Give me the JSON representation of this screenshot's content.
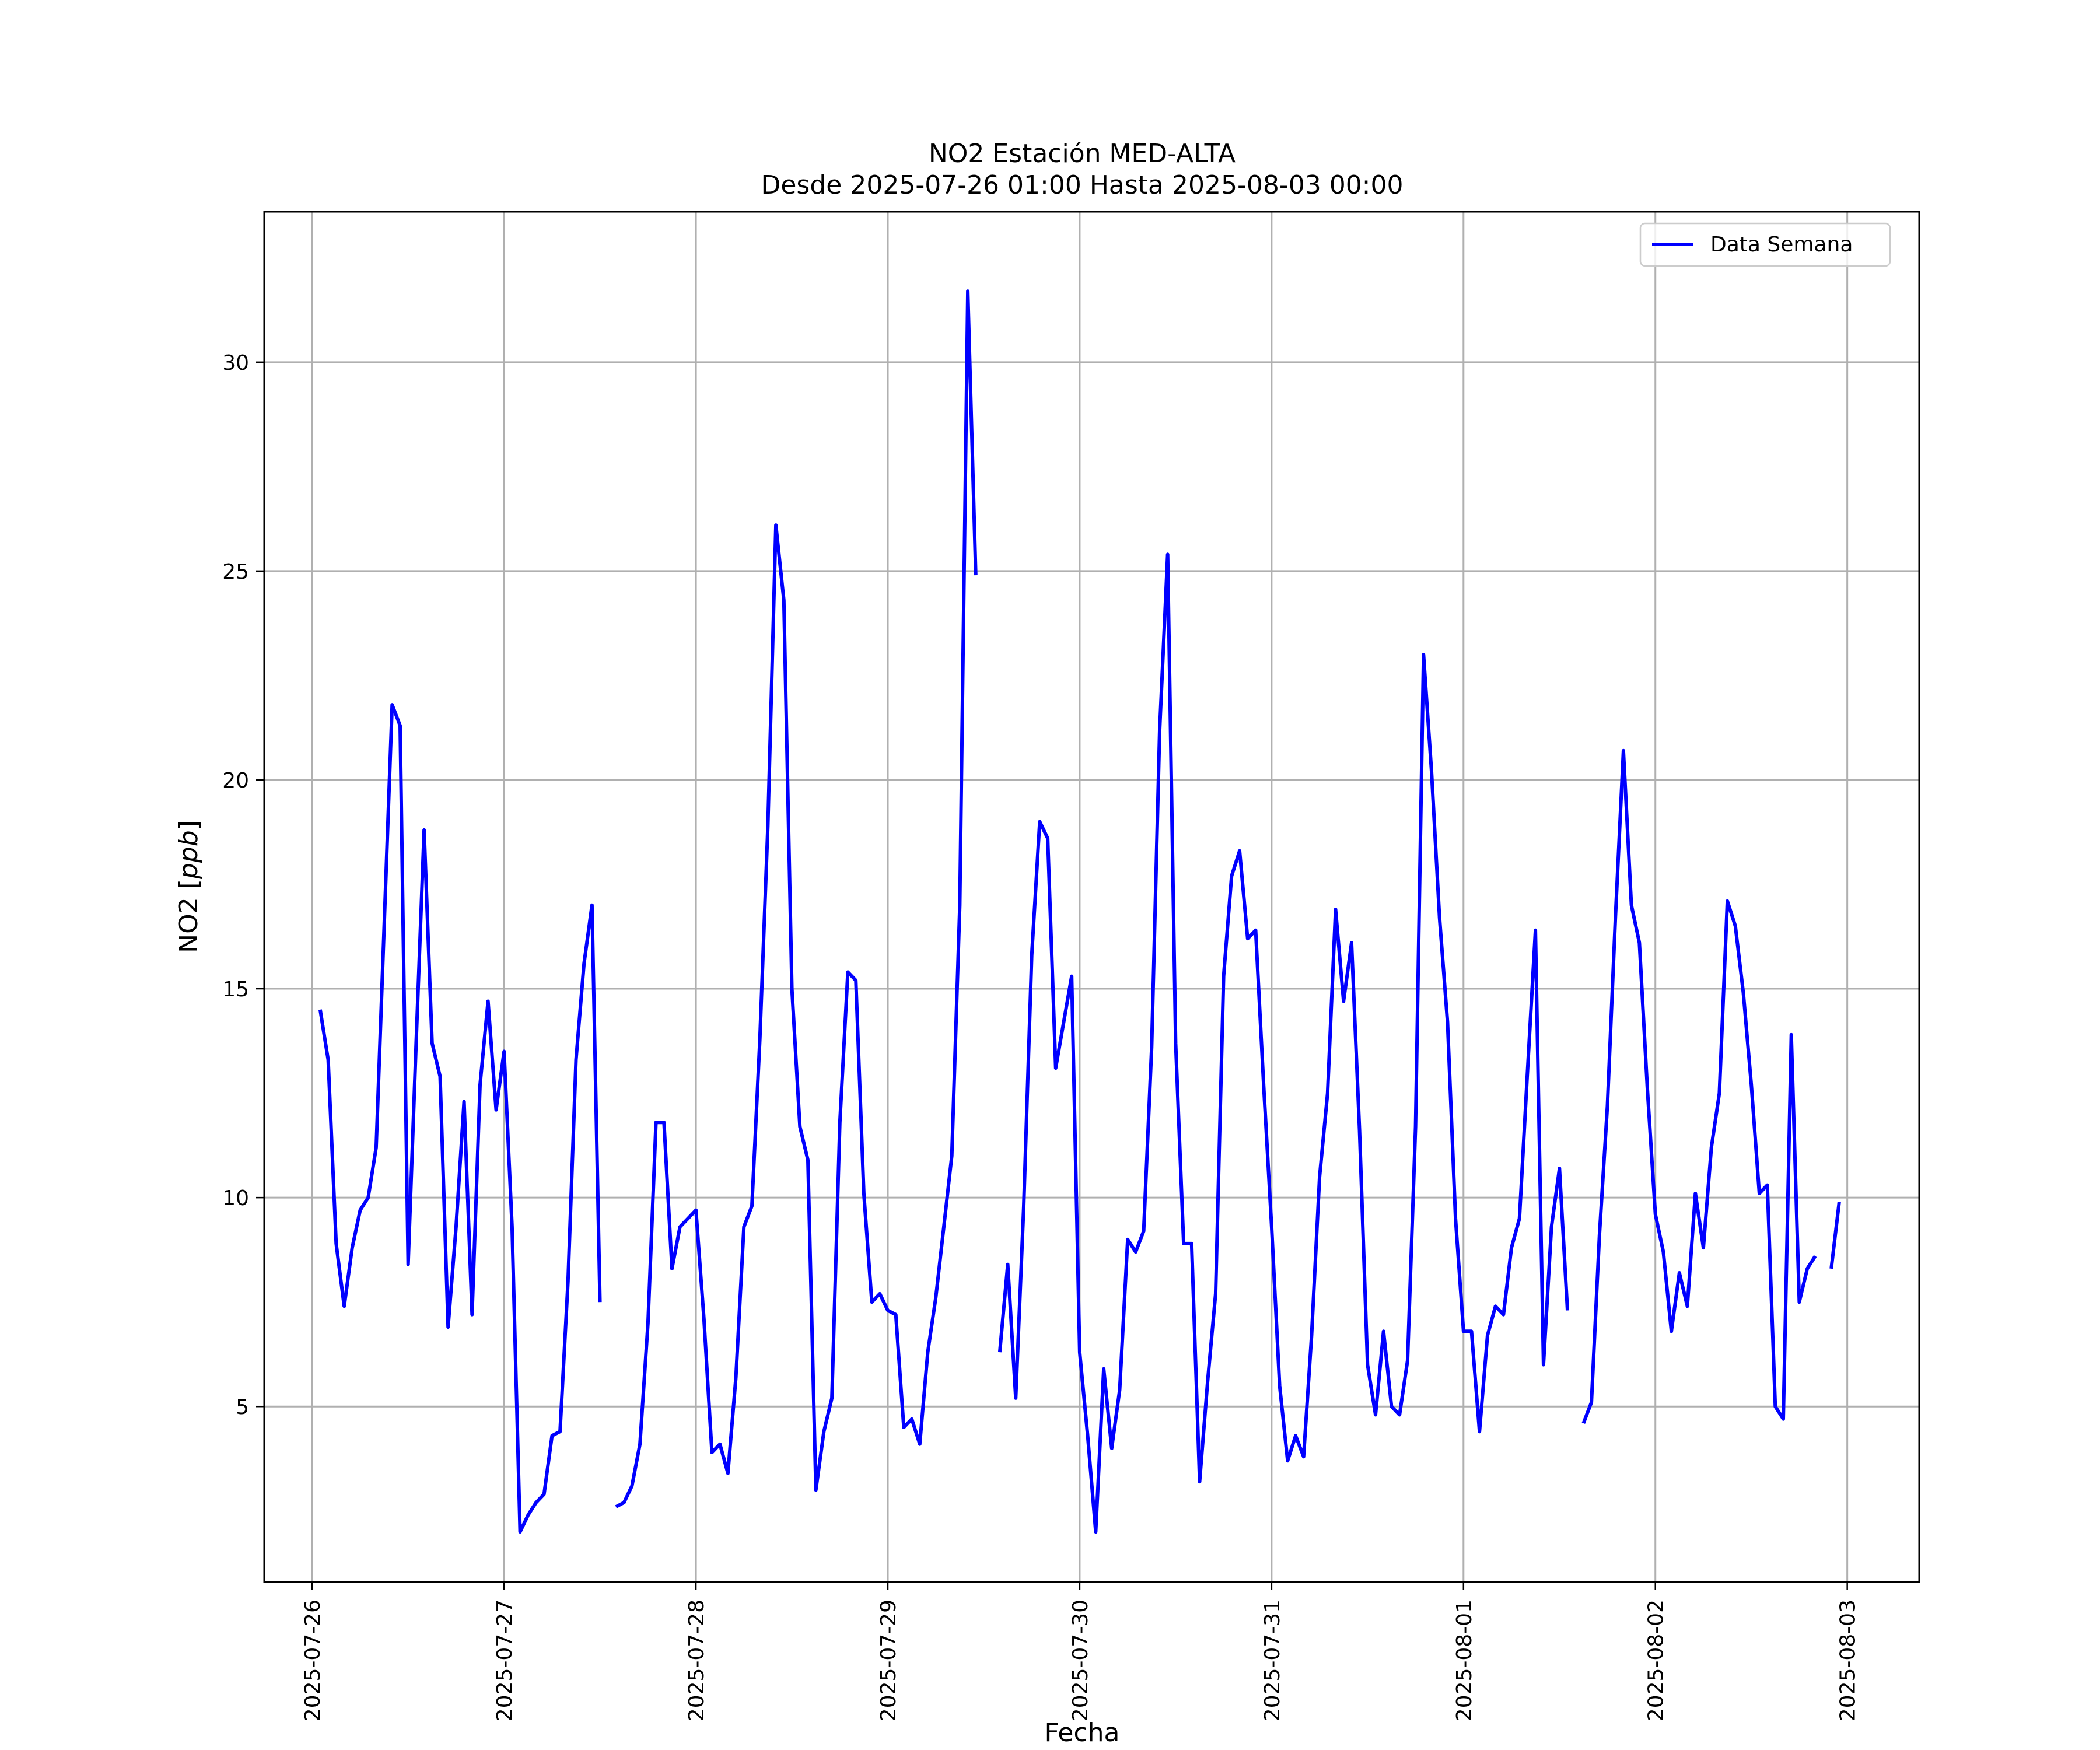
{
  "chart_data": {
    "type": "line",
    "title": "NO2 Estación MED-ALTA",
    "subtitle": "Desde 2025-07-26 01:00 Hasta 2025-08-03 00:00",
    "xlabel": "Fecha",
    "ylabel": "NO2 [ppb]",
    "ylabel_main": "NO2 ",
    "ylabel_unit": "ppb",
    "xlim": [
      "2025-07-25 18:00",
      "2025-08-03 09:00"
    ],
    "ylim": [
      0.8,
      33.6
    ],
    "grid": true,
    "legend": "top-right",
    "x_ticks": [
      "2025-07-26",
      "2025-07-27",
      "2025-07-28",
      "2025-07-29",
      "2025-07-30",
      "2025-07-31",
      "2025-08-01",
      "2025-08-02",
      "2025-08-03"
    ],
    "y_ticks": [
      5,
      10,
      15,
      20,
      25,
      30
    ],
    "series": [
      {
        "name": "Data Semana",
        "color": "#0000ff",
        "points": [
          [
            "2025-07-26 01:00",
            14.5
          ],
          [
            "2025-07-26 02:00",
            13.3
          ],
          [
            "2025-07-26 03:00",
            8.9
          ],
          [
            "2025-07-26 04:00",
            7.4
          ],
          [
            "2025-07-26 05:00",
            8.8
          ],
          [
            "2025-07-26 06:00",
            9.7
          ],
          [
            "2025-07-26 07:00",
            10.0
          ],
          [
            "2025-07-26 08:00",
            11.2
          ],
          [
            "2025-07-26 09:00",
            16.5
          ],
          [
            "2025-07-26 10:00",
            21.8
          ],
          [
            "2025-07-26 11:00",
            21.3
          ],
          [
            "2025-07-26 12:00",
            8.4
          ],
          [
            "2025-07-26 13:00",
            13.7
          ],
          [
            "2025-07-26 14:00",
            18.8
          ],
          [
            "2025-07-26 15:00",
            13.7
          ],
          [
            "2025-07-26 16:00",
            12.9
          ],
          [
            "2025-07-26 17:00",
            6.9
          ],
          [
            "2025-07-26 18:00",
            9.3
          ],
          [
            "2025-07-26 19:00",
            12.3
          ],
          [
            "2025-07-26 20:00",
            7.2
          ],
          [
            "2025-07-26 21:00",
            12.7
          ],
          [
            "2025-07-26 22:00",
            14.7
          ],
          [
            "2025-07-26 23:00",
            12.1
          ],
          [
            "2025-07-27 00:00",
            13.5
          ],
          [
            "2025-07-27 01:00",
            9.3
          ],
          [
            "2025-07-27 02:00",
            2.0
          ],
          [
            "2025-07-27 03:00",
            2.4
          ],
          [
            "2025-07-27 04:00",
            2.7
          ],
          [
            "2025-07-27 05:00",
            2.9
          ],
          [
            "2025-07-27 06:00",
            4.3
          ],
          [
            "2025-07-27 07:00",
            4.4
          ],
          [
            "2025-07-27 08:00",
            8.0
          ],
          [
            "2025-07-27 09:00",
            13.3
          ],
          [
            "2025-07-27 10:00",
            15.6
          ],
          [
            "2025-07-27 11:00",
            17.0
          ],
          [
            "2025-07-27 12:00",
            7.5
          ],
          [
            "2025-07-27 13:00",
            null
          ],
          [
            "2025-07-27 14:00",
            2.6
          ],
          [
            "2025-07-27 15:00",
            2.7
          ],
          [
            "2025-07-27 16:00",
            3.1
          ],
          [
            "2025-07-27 17:00",
            4.1
          ],
          [
            "2025-07-27 18:00",
            7.0
          ],
          [
            "2025-07-27 19:00",
            11.8
          ],
          [
            "2025-07-27 20:00",
            11.8
          ],
          [
            "2025-07-27 21:00",
            8.3
          ],
          [
            "2025-07-27 22:00",
            9.3
          ],
          [
            "2025-07-27 23:00",
            9.5
          ],
          [
            "2025-07-28 00:00",
            9.7
          ],
          [
            "2025-07-28 01:00",
            7.1
          ],
          [
            "2025-07-28 02:00",
            3.9
          ],
          [
            "2025-07-28 03:00",
            4.1
          ],
          [
            "2025-07-28 04:00",
            3.4
          ],
          [
            "2025-07-28 05:00",
            5.7
          ],
          [
            "2025-07-28 06:00",
            9.3
          ],
          [
            "2025-07-28 07:00",
            9.8
          ],
          [
            "2025-07-28 08:00",
            13.8
          ],
          [
            "2025-07-28 09:00",
            18.9
          ],
          [
            "2025-07-28 10:00",
            26.1
          ],
          [
            "2025-07-28 11:00",
            24.3
          ],
          [
            "2025-07-28 12:00",
            15.0
          ],
          [
            "2025-07-28 13:00",
            11.7
          ],
          [
            "2025-07-28 14:00",
            10.9
          ],
          [
            "2025-07-28 15:00",
            3.0
          ],
          [
            "2025-07-28 16:00",
            4.4
          ],
          [
            "2025-07-28 17:00",
            5.2
          ],
          [
            "2025-07-28 18:00",
            11.8
          ],
          [
            "2025-07-28 19:00",
            15.4
          ],
          [
            "2025-07-28 20:00",
            15.2
          ],
          [
            "2025-07-28 21:00",
            10.1
          ],
          [
            "2025-07-28 22:00",
            7.5
          ],
          [
            "2025-07-28 23:00",
            7.7
          ],
          [
            "2025-07-29 00:00",
            7.3
          ],
          [
            "2025-07-29 01:00",
            7.2
          ],
          [
            "2025-07-29 02:00",
            4.5
          ],
          [
            "2025-07-29 03:00",
            4.7
          ],
          [
            "2025-07-29 04:00",
            4.1
          ],
          [
            "2025-07-29 05:00",
            6.3
          ],
          [
            "2025-07-29 06:00",
            7.6
          ],
          [
            "2025-07-29 07:00",
            9.3
          ],
          [
            "2025-07-29 08:00",
            11.0
          ],
          [
            "2025-07-29 09:00",
            17.0
          ],
          [
            "2025-07-29 10:00",
            31.7
          ],
          [
            "2025-07-29 11:00",
            24.9
          ],
          [
            "2025-07-29 12:00",
            null
          ],
          [
            "2025-07-29 13:00",
            null
          ],
          [
            "2025-07-29 14:00",
            6.3
          ],
          [
            "2025-07-29 15:00",
            8.4
          ],
          [
            "2025-07-29 16:00",
            5.2
          ],
          [
            "2025-07-29 17:00",
            9.8
          ],
          [
            "2025-07-29 18:00",
            15.8
          ],
          [
            "2025-07-29 19:00",
            19.0
          ],
          [
            "2025-07-29 20:00",
            18.6
          ],
          [
            "2025-07-29 21:00",
            13.1
          ],
          [
            "2025-07-29 22:00",
            14.2
          ],
          [
            "2025-07-29 23:00",
            15.3
          ],
          [
            "2025-07-30 00:00",
            6.3
          ],
          [
            "2025-07-30 01:00",
            4.3
          ],
          [
            "2025-07-30 02:00",
            2.0
          ],
          [
            "2025-07-30 03:00",
            5.9
          ],
          [
            "2025-07-30 04:00",
            4.0
          ],
          [
            "2025-07-30 05:00",
            5.4
          ],
          [
            "2025-07-30 06:00",
            9.0
          ],
          [
            "2025-07-30 07:00",
            8.7
          ],
          [
            "2025-07-30 08:00",
            9.2
          ],
          [
            "2025-07-30 09:00",
            13.6
          ],
          [
            "2025-07-30 10:00",
            21.2
          ],
          [
            "2025-07-30 11:00",
            25.4
          ],
          [
            "2025-07-30 12:00",
            13.7
          ],
          [
            "2025-07-30 13:00",
            8.9
          ],
          [
            "2025-07-30 14:00",
            8.9
          ],
          [
            "2025-07-30 15:00",
            3.2
          ],
          [
            "2025-07-30 16:00",
            5.6
          ],
          [
            "2025-07-30 17:00",
            7.7
          ],
          [
            "2025-07-30 18:00",
            15.3
          ],
          [
            "2025-07-30 19:00",
            17.7
          ],
          [
            "2025-07-30 20:00",
            18.3
          ],
          [
            "2025-07-30 21:00",
            16.2
          ],
          [
            "2025-07-30 22:00",
            16.4
          ],
          [
            "2025-07-30 23:00",
            12.7
          ],
          [
            "2025-07-31 00:00",
            9.3
          ],
          [
            "2025-07-31 01:00",
            5.5
          ],
          [
            "2025-07-31 02:00",
            3.7
          ],
          [
            "2025-07-31 03:00",
            4.3
          ],
          [
            "2025-07-31 04:00",
            3.8
          ],
          [
            "2025-07-31 05:00",
            6.7
          ],
          [
            "2025-07-31 06:00",
            10.5
          ],
          [
            "2025-07-31 07:00",
            12.5
          ],
          [
            "2025-07-31 08:00",
            16.9
          ],
          [
            "2025-07-31 09:00",
            14.7
          ],
          [
            "2025-07-31 10:00",
            16.1
          ],
          [
            "2025-07-31 11:00",
            11.6
          ],
          [
            "2025-07-31 12:00",
            6.0
          ],
          [
            "2025-07-31 13:00",
            4.8
          ],
          [
            "2025-07-31 14:00",
            6.8
          ],
          [
            "2025-07-31 15:00",
            5.0
          ],
          [
            "2025-07-31 16:00",
            4.8
          ],
          [
            "2025-07-31 17:00",
            6.1
          ],
          [
            "2025-07-31 18:00",
            11.7
          ],
          [
            "2025-07-31 19:00",
            23.0
          ],
          [
            "2025-07-31 20:00",
            20.2
          ],
          [
            "2025-07-31 21:00",
            16.7
          ],
          [
            "2025-07-31 22:00",
            14.2
          ],
          [
            "2025-07-31 23:00",
            9.5
          ],
          [
            "2025-08-01 00:00",
            6.8
          ],
          [
            "2025-08-01 01:00",
            6.8
          ],
          [
            "2025-08-01 02:00",
            4.4
          ],
          [
            "2025-08-01 03:00",
            6.7
          ],
          [
            "2025-08-01 04:00",
            7.4
          ],
          [
            "2025-08-01 05:00",
            7.2
          ],
          [
            "2025-08-01 06:00",
            8.8
          ],
          [
            "2025-08-01 07:00",
            9.5
          ],
          [
            "2025-08-01 08:00",
            13.0
          ],
          [
            "2025-08-01 09:00",
            16.4
          ],
          [
            "2025-08-01 10:00",
            6.0
          ],
          [
            "2025-08-01 11:00",
            9.3
          ],
          [
            "2025-08-01 12:00",
            10.7
          ],
          [
            "2025-08-01 13:00",
            7.3
          ],
          [
            "2025-08-01 14:00",
            null
          ],
          [
            "2025-08-01 15:00",
            4.6
          ],
          [
            "2025-08-01 16:00",
            5.1
          ],
          [
            "2025-08-01 17:00",
            9.1
          ],
          [
            "2025-08-01 18:00",
            12.2
          ],
          [
            "2025-08-01 19:00",
            16.7
          ],
          [
            "2025-08-01 20:00",
            20.7
          ],
          [
            "2025-08-01 21:00",
            17.0
          ],
          [
            "2025-08-01 22:00",
            16.1
          ],
          [
            "2025-08-01 23:00",
            12.6
          ],
          [
            "2025-08-02 00:00",
            9.6
          ],
          [
            "2025-08-02 01:00",
            8.7
          ],
          [
            "2025-08-02 02:00",
            6.8
          ],
          [
            "2025-08-02 03:00",
            8.2
          ],
          [
            "2025-08-02 04:00",
            7.4
          ],
          [
            "2025-08-02 05:00",
            10.1
          ],
          [
            "2025-08-02 06:00",
            8.8
          ],
          [
            "2025-08-02 07:00",
            11.2
          ],
          [
            "2025-08-02 08:00",
            12.5
          ],
          [
            "2025-08-02 09:00",
            17.1
          ],
          [
            "2025-08-02 10:00",
            16.5
          ],
          [
            "2025-08-02 11:00",
            14.9
          ],
          [
            "2025-08-02 12:00",
            12.7
          ],
          [
            "2025-08-02 13:00",
            10.1
          ],
          [
            "2025-08-02 14:00",
            10.3
          ],
          [
            "2025-08-02 15:00",
            5.0
          ],
          [
            "2025-08-02 16:00",
            4.7
          ],
          [
            "2025-08-02 17:00",
            13.9
          ],
          [
            "2025-08-02 18:00",
            7.5
          ],
          [
            "2025-08-02 19:00",
            8.3
          ],
          [
            "2025-08-02 20:00",
            8.6
          ],
          [
            "2025-08-02 21:00",
            null
          ],
          [
            "2025-08-02 22:00",
            8.3
          ],
          [
            "2025-08-02 23:00",
            9.9
          ]
        ]
      }
    ]
  }
}
